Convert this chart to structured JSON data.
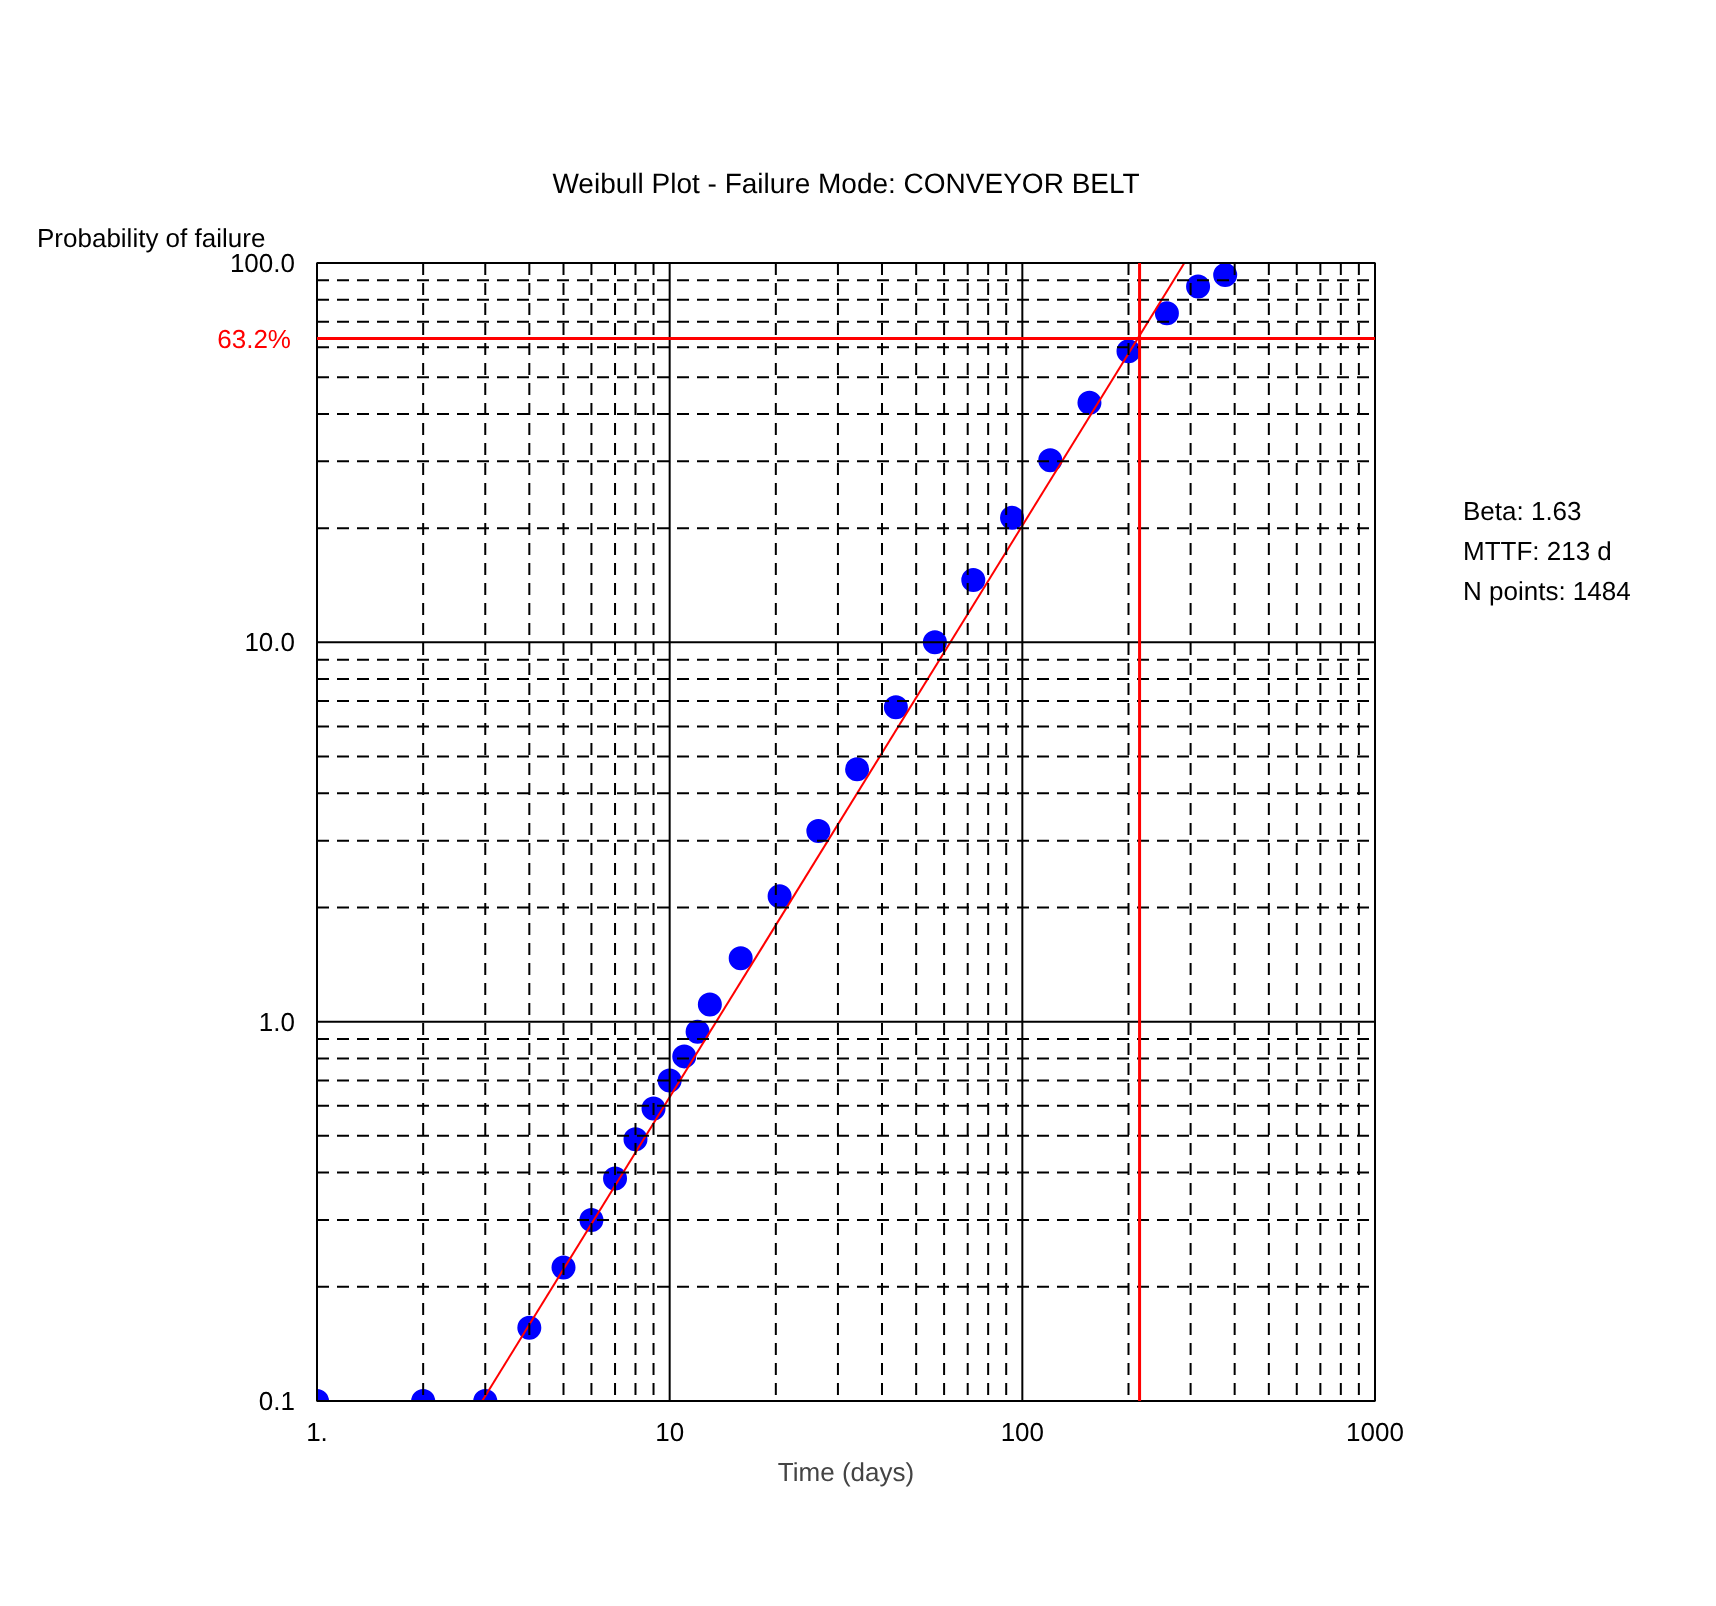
{
  "chart_data": {
    "type": "scatter",
    "title": "Weibull Plot - Failure Mode: CONVEYOR BELT",
    "xlabel": "Time (days)",
    "ylabel": "Probability of failure",
    "log": "xy",
    "grid": true,
    "xlim": [
      1,
      1000
    ],
    "ylim": [
      0.1,
      100
    ],
    "xticks": [
      {
        "value": 1,
        "label": "1."
      },
      {
        "value": 2,
        "label": null
      },
      {
        "value": 3,
        "label": null
      },
      {
        "value": 4,
        "label": null
      },
      {
        "value": 5,
        "label": null
      },
      {
        "value": 6,
        "label": null
      },
      {
        "value": 7,
        "label": null
      },
      {
        "value": 8,
        "label": null
      },
      {
        "value": 9,
        "label": null
      },
      10,
      {
        "value": 20,
        "label": null
      },
      {
        "value": 30,
        "label": null
      },
      {
        "value": 40,
        "label": null
      },
      {
        "value": 50,
        "label": null
      },
      {
        "value": 60,
        "label": null
      },
      {
        "value": 70,
        "label": null
      },
      {
        "value": 80,
        "label": null
      },
      {
        "value": 90,
        "label": null
      },
      100,
      {
        "value": 200,
        "label": null
      },
      {
        "value": 300,
        "label": null
      },
      {
        "value": 400,
        "label": null
      },
      {
        "value": 500,
        "label": null
      },
      {
        "value": 600,
        "label": null
      },
      {
        "value": 700,
        "label": null
      },
      {
        "value": 800,
        "label": null
      },
      {
        "value": 900,
        "label": null
      },
      1000
    ],
    "yticks": [
      0.1,
      {
        "value": 0.2,
        "label": null
      },
      {
        "value": 0.3,
        "label": null
      },
      {
        "value": 0.4,
        "label": null
      },
      {
        "value": 0.5,
        "label": null
      },
      {
        "value": 0.6,
        "label": null
      },
      {
        "value": 0.7,
        "label": null
      },
      {
        "value": 0.8,
        "label": null
      },
      {
        "value": 0.9,
        "label": null
      },
      {
        "value": 1,
        "label": "1.0"
      },
      {
        "value": 2,
        "label": null
      },
      {
        "value": 3,
        "label": null
      },
      {
        "value": 4,
        "label": null
      },
      {
        "value": 5,
        "label": null
      },
      {
        "value": 6,
        "label": null
      },
      {
        "value": 7,
        "label": null
      },
      {
        "value": 8,
        "label": null
      },
      {
        "value": 9,
        "label": null
      },
      {
        "value": 10,
        "label": "10.0"
      },
      {
        "value": 20,
        "label": null
      },
      {
        "value": 30,
        "label": null
      },
      {
        "value": 40,
        "label": null
      },
      {
        "value": 50,
        "label": null
      },
      {
        "value": 60,
        "label": null
      },
      {
        "value": 70,
        "label": null
      },
      {
        "value": 80,
        "label": null
      },
      {
        "value": 90,
        "label": null
      },
      {
        "value": 100,
        "label": "100.0"
      }
    ],
    "series": [
      {
        "type": "scatter",
        "marker": "circle",
        "color": "#0000ff",
        "x": [
          1,
          2,
          3,
          4,
          5,
          6,
          7,
          8,
          9,
          10,
          11,
          12,
          13,
          15.9,
          20.5,
          26.4,
          34,
          43.8,
          56.5,
          72.6,
          93.5,
          120,
          155,
          200,
          257,
          315,
          376
        ],
        "values": [
          0.1,
          0.1,
          0.1,
          0.156,
          0.225,
          0.3,
          0.386,
          0.49,
          0.59,
          0.7,
          0.81,
          0.94,
          1.11,
          1.47,
          2.14,
          3.18,
          4.63,
          6.74,
          10,
          14.6,
          21.3,
          30.2,
          42.8,
          58.5,
          73.7,
          86.7,
          93
        ]
      },
      {
        "type": "line",
        "color": "#ff0000",
        "x": [
          2.94,
          288
        ],
        "values": [
          0.1,
          100
        ]
      }
    ],
    "ref_lines": [
      {
        "axis": "y",
        "value": 63.2,
        "label": "63.2%",
        "color": "#ff0000"
      },
      {
        "axis": "x",
        "value": 215,
        "label": null,
        "color": "#ff0000"
      }
    ],
    "annotations": [
      "Beta: 1.63",
      "MTTF: 213 d",
      "N points: 1484"
    ]
  }
}
